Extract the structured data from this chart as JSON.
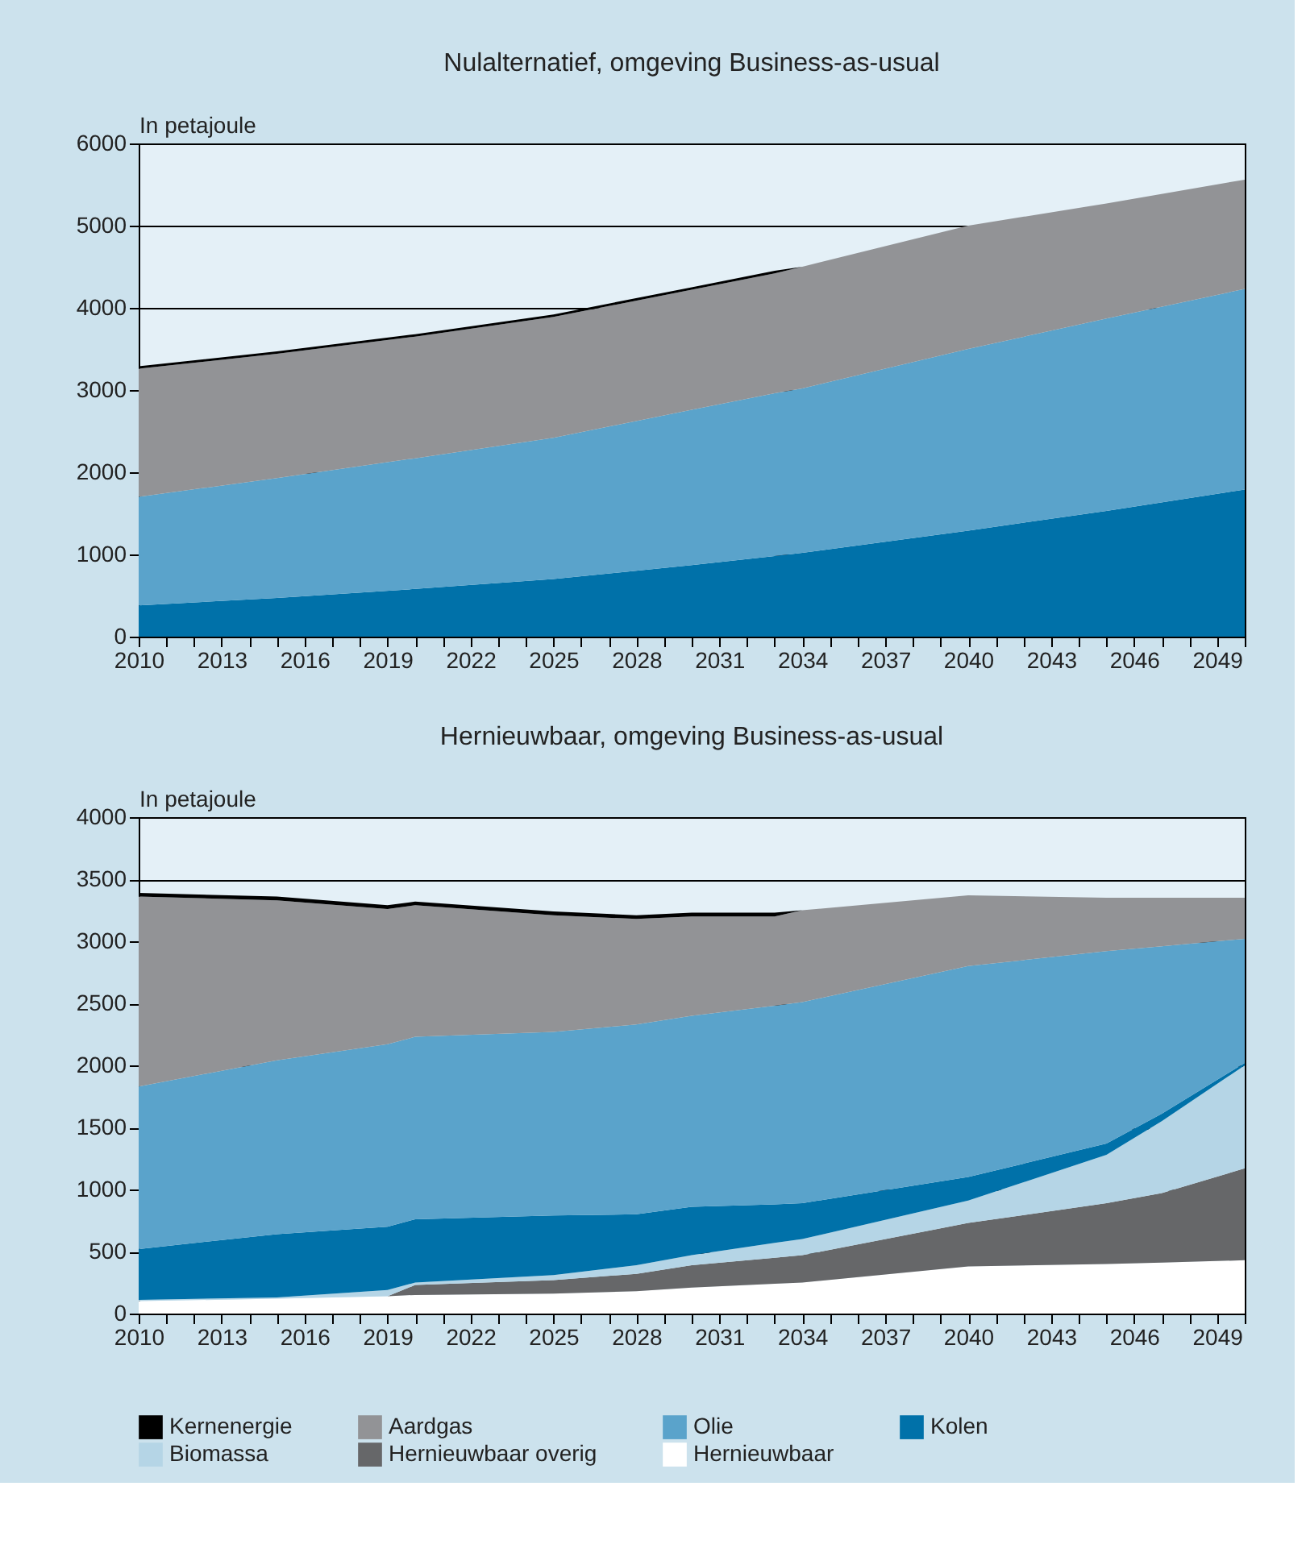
{
  "chart_data": [
    {
      "type": "area",
      "stacked": true,
      "title": "Nulalternatief, omgeving Business-as-usual",
      "ylabel": "In petajoule",
      "x": [
        2010,
        2015,
        2020,
        2025,
        2030,
        2033,
        2034,
        2040,
        2045,
        2050
      ],
      "xlim": [
        2010,
        2050
      ],
      "ylim": [
        0,
        6000
      ],
      "yticks": [
        0,
        1000,
        2000,
        3000,
        4000,
        5000,
        6000
      ],
      "xticks": [
        2010,
        {
          "value": 2011,
          "label": null
        },
        {
          "value": 2012,
          "label": null
        },
        2013,
        {
          "value": 2014,
          "label": null
        },
        {
          "value": 2015,
          "label": null
        },
        2016,
        {
          "value": 2017,
          "label": null
        },
        {
          "value": 2018,
          "label": null
        },
        2019,
        {
          "value": 2020,
          "label": null
        },
        {
          "value": 2021,
          "label": null
        },
        2022,
        {
          "value": 2023,
          "label": null
        },
        {
          "value": 2024,
          "label": null
        },
        2025,
        {
          "value": 2026,
          "label": null
        },
        {
          "value": 2027,
          "label": null
        },
        2028,
        {
          "value": 2029,
          "label": null
        },
        {
          "value": 2030,
          "label": null
        },
        2031,
        {
          "value": 2032,
          "label": null
        },
        {
          "value": 2033,
          "label": null
        },
        2034,
        {
          "value": 2035,
          "label": null
        },
        {
          "value": 2036,
          "label": null
        },
        2037,
        {
          "value": 2038,
          "label": null
        },
        {
          "value": 2039,
          "label": null
        },
        2040,
        {
          "value": 2041,
          "label": null
        },
        {
          "value": 2042,
          "label": null
        },
        2043,
        {
          "value": 2044,
          "label": null
        },
        {
          "value": 2045,
          "label": null
        },
        2046,
        {
          "value": 2047,
          "label": null
        },
        {
          "value": 2048,
          "label": null
        },
        2049,
        {
          "value": 2050,
          "label": null
        }
      ],
      "grid": "y",
      "legend": "bottom",
      "series": [
        {
          "name": "Kolen",
          "color": "#0071a9",
          "values": [
            380,
            470,
            580,
            700,
            870,
            980,
            1020,
            1290,
            1530,
            1790
          ]
        },
        {
          "name": "Olie",
          "color": "#5aa3cb",
          "values": [
            1320,
            1460,
            1590,
            1720,
            1890,
            1980,
            2000,
            2210,
            2340,
            2440
          ]
        },
        {
          "name": "Aardgas",
          "color": "#929396",
          "values": [
            1560,
            1510,
            1480,
            1470,
            1460,
            1460,
            1480,
            1500,
            1400,
            1330
          ]
        },
        {
          "name": "Kernenergie",
          "color": "#000000",
          "values": [
            30,
            30,
            30,
            30,
            30,
            30,
            0,
            0,
            0,
            0
          ]
        }
      ]
    },
    {
      "type": "area",
      "stacked": true,
      "title": "Hernieuwbaar, omgeving Business-as-usual",
      "ylabel": "In petajoule",
      "x": [
        2010,
        2015,
        2019,
        2020,
        2025,
        2028,
        2030,
        2033,
        2034,
        2040,
        2045,
        2047,
        2050
      ],
      "xlim": [
        2010,
        2050
      ],
      "ylim": [
        0,
        4000
      ],
      "yticks": [
        0,
        500,
        1000,
        1500,
        2000,
        2500,
        3000,
        3500,
        4000
      ],
      "xticks": [
        2010,
        {
          "value": 2011,
          "label": null
        },
        {
          "value": 2012,
          "label": null
        },
        2013,
        {
          "value": 2014,
          "label": null
        },
        {
          "value": 2015,
          "label": null
        },
        2016,
        {
          "value": 2017,
          "label": null
        },
        {
          "value": 2018,
          "label": null
        },
        2019,
        {
          "value": 2020,
          "label": null
        },
        {
          "value": 2021,
          "label": null
        },
        2022,
        {
          "value": 2023,
          "label": null
        },
        {
          "value": 2024,
          "label": null
        },
        2025,
        {
          "value": 2026,
          "label": null
        },
        {
          "value": 2027,
          "label": null
        },
        2028,
        {
          "value": 2029,
          "label": null
        },
        {
          "value": 2030,
          "label": null
        },
        2031,
        {
          "value": 2032,
          "label": null
        },
        {
          "value": 2033,
          "label": null
        },
        2034,
        {
          "value": 2035,
          "label": null
        },
        {
          "value": 2036,
          "label": null
        },
        2037,
        {
          "value": 2038,
          "label": null
        },
        {
          "value": 2039,
          "label": null
        },
        2040,
        {
          "value": 2041,
          "label": null
        },
        {
          "value": 2042,
          "label": null
        },
        2043,
        {
          "value": 2044,
          "label": null
        },
        {
          "value": 2045,
          "label": null
        },
        2046,
        {
          "value": 2047,
          "label": null
        },
        {
          "value": 2048,
          "label": null
        },
        2049,
        {
          "value": 2050,
          "label": null
        }
      ],
      "grid": "y",
      "legend": "bottom",
      "series": [
        {
          "name": "Hernieuwbaar",
          "color": "#ffffff",
          "values": [
            100,
            120,
            140,
            150,
            160,
            180,
            210,
            240,
            250,
            380,
            400,
            410,
            430
          ]
        },
        {
          "name": "Hernieuwbaar overig",
          "color": "#666769",
          "values": [
            0,
            0,
            0,
            80,
            110,
            140,
            180,
            210,
            220,
            350,
            490,
            560,
            740
          ]
        },
        {
          "name": "Biomassa",
          "color": "#b5d5e6",
          "values": [
            10,
            10,
            50,
            20,
            40,
            70,
            80,
            120,
            130,
            180,
            390,
            580,
            830
          ]
        },
        {
          "name": "Kolen",
          "color": "#0071a9",
          "values": [
            410,
            510,
            510,
            510,
            480,
            410,
            390,
            310,
            290,
            190,
            90,
            60,
            20
          ]
        },
        {
          "name": "Olie",
          "color": "#5aa3cb",
          "values": [
            1310,
            1400,
            1470,
            1470,
            1480,
            1530,
            1540,
            1600,
            1620,
            1700,
            1550,
            1350,
            1000
          ]
        },
        {
          "name": "Aardgas",
          "color": "#929396",
          "values": [
            1530,
            1290,
            1090,
            1060,
            940,
            850,
            800,
            720,
            740,
            570,
            430,
            390,
            330
          ]
        },
        {
          "name": "Kernenergie",
          "color": "#000000",
          "values": [
            30,
            30,
            30,
            30,
            30,
            30,
            30,
            30,
            0,
            0,
            0,
            0,
            0
          ]
        }
      ]
    }
  ]
}
